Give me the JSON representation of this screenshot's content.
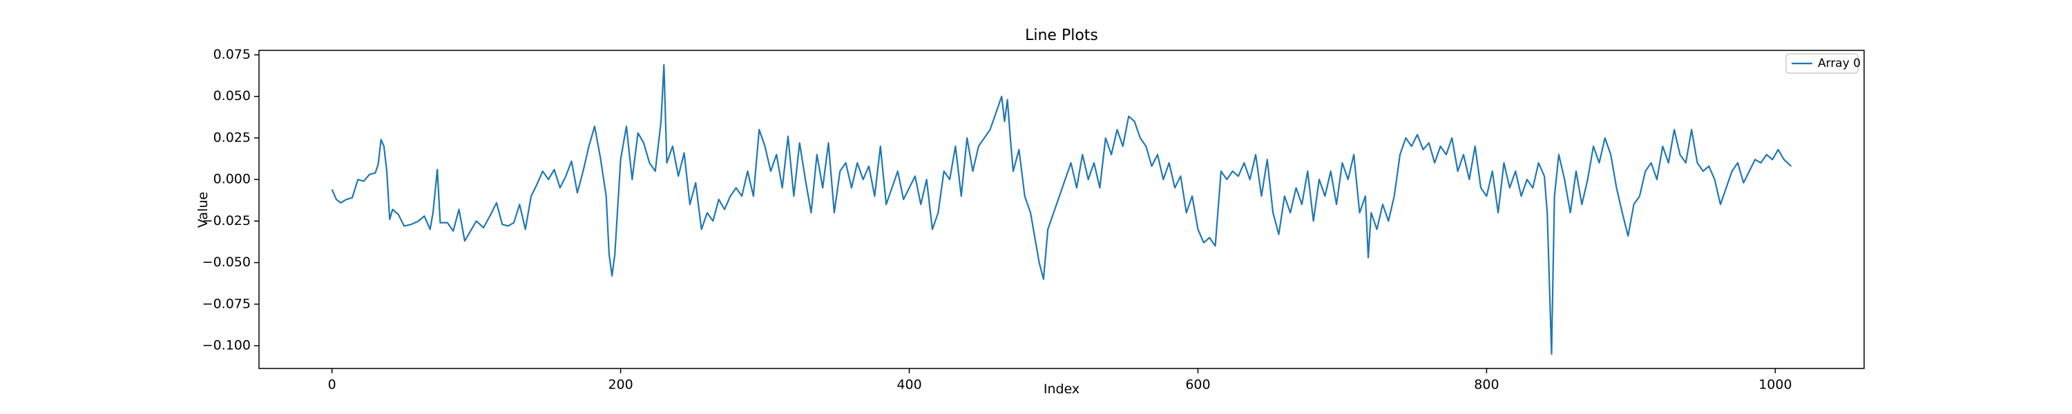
{
  "chart_data": {
    "type": "line",
    "title": "Line Plots",
    "x_label": "Index",
    "y_label": "Value",
    "x": [
      0,
      3,
      6,
      10,
      14,
      18,
      22,
      26,
      30,
      32,
      34,
      36,
      38,
      40,
      42,
      46,
      50,
      55,
      60,
      64,
      68,
      70,
      73,
      75,
      80,
      84,
      88,
      92,
      96,
      100,
      105,
      110,
      114,
      118,
      122,
      126,
      130,
      134,
      138,
      142,
      146,
      150,
      154,
      158,
      162,
      166,
      170,
      174,
      178,
      182,
      186,
      190,
      192,
      194,
      196,
      200,
      204,
      208,
      212,
      216,
      220,
      224,
      228,
      230,
      232,
      236,
      240,
      244,
      248,
      252,
      256,
      260,
      264,
      268,
      272,
      276,
      280,
      284,
      288,
      292,
      296,
      300,
      304,
      308,
      312,
      316,
      320,
      324,
      328,
      332,
      336,
      340,
      344,
      348,
      352,
      356,
      360,
      364,
      368,
      372,
      376,
      380,
      384,
      388,
      392,
      396,
      400,
      404,
      408,
      412,
      416,
      420,
      424,
      428,
      432,
      436,
      440,
      444,
      448,
      452,
      456,
      460,
      464,
      466,
      468,
      470,
      472,
      476,
      480,
      484,
      488,
      490,
      493,
      496,
      500,
      504,
      508,
      512,
      516,
      520,
      524,
      528,
      532,
      536,
      540,
      544,
      548,
      552,
      556,
      560,
      564,
      568,
      572,
      576,
      580,
      584,
      588,
      592,
      596,
      600,
      604,
      608,
      612,
      616,
      620,
      624,
      628,
      632,
      636,
      640,
      644,
      648,
      652,
      656,
      660,
      664,
      668,
      672,
      676,
      680,
      684,
      688,
      692,
      696,
      700,
      704,
      708,
      712,
      716,
      718,
      720,
      724,
      728,
      732,
      736,
      740,
      744,
      748,
      752,
      756,
      760,
      764,
      768,
      772,
      776,
      780,
      784,
      788,
      792,
      796,
      800,
      804,
      808,
      812,
      816,
      820,
      824,
      828,
      832,
      836,
      840,
      842,
      845,
      847,
      850,
      854,
      858,
      862,
      866,
      870,
      874,
      878,
      882,
      886,
      890,
      894,
      898,
      902,
      906,
      910,
      914,
      918,
      922,
      926,
      930,
      934,
      938,
      942,
      946,
      950,
      954,
      958,
      962,
      966,
      970,
      974,
      978,
      982,
      986,
      990,
      994,
      998,
      1002,
      1006,
      1011
    ],
    "series": [
      {
        "name": "Array 0",
        "color": "#1f77b4",
        "values": [
          -0.006,
          -0.012,
          -0.014,
          -0.012,
          -0.011,
          0.0,
          -0.001,
          0.003,
          0.004,
          0.009,
          0.024,
          0.02,
          0.005,
          -0.024,
          -0.018,
          -0.021,
          -0.028,
          -0.027,
          -0.025,
          -0.022,
          -0.03,
          -0.02,
          0.006,
          -0.026,
          -0.026,
          -0.031,
          -0.018,
          -0.037,
          -0.031,
          -0.025,
          -0.029,
          -0.021,
          -0.014,
          -0.027,
          -0.028,
          -0.026,
          -0.015,
          -0.03,
          -0.01,
          -0.003,
          0.005,
          0.0,
          0.006,
          -0.005,
          0.002,
          0.011,
          -0.008,
          0.005,
          0.02,
          0.032,
          0.013,
          -0.01,
          -0.045,
          -0.058,
          -0.045,
          0.012,
          0.032,
          0.0,
          0.028,
          0.022,
          0.01,
          0.005,
          0.035,
          0.069,
          0.01,
          0.02,
          0.002,
          0.016,
          -0.015,
          -0.002,
          -0.03,
          -0.02,
          -0.025,
          -0.012,
          -0.018,
          -0.01,
          -0.005,
          -0.01,
          0.005,
          -0.01,
          0.03,
          0.02,
          0.005,
          0.015,
          -0.005,
          0.026,
          -0.01,
          0.022,
          0.0,
          -0.02,
          0.015,
          -0.005,
          0.022,
          -0.02,
          0.005,
          0.01,
          -0.005,
          0.01,
          0.0,
          0.008,
          -0.01,
          0.02,
          -0.015,
          -0.005,
          0.005,
          -0.012,
          -0.005,
          0.002,
          -0.015,
          0.0,
          -0.03,
          -0.02,
          0.005,
          0.0,
          0.02,
          -0.01,
          0.025,
          0.005,
          0.02,
          0.025,
          0.03,
          0.04,
          0.05,
          0.035,
          0.048,
          0.025,
          0.005,
          0.018,
          -0.01,
          -0.02,
          -0.04,
          -0.05,
          -0.06,
          -0.03,
          -0.02,
          -0.01,
          0.0,
          0.01,
          -0.005,
          0.015,
          0.0,
          0.01,
          -0.005,
          0.025,
          0.015,
          0.03,
          0.02,
          0.038,
          0.035,
          0.025,
          0.02,
          0.008,
          0.015,
          0.0,
          0.01,
          -0.005,
          0.002,
          -0.02,
          -0.01,
          -0.03,
          -0.038,
          -0.035,
          -0.04,
          0.005,
          0.0,
          0.005,
          0.002,
          0.01,
          0.0,
          0.015,
          -0.01,
          0.012,
          -0.02,
          -0.033,
          -0.01,
          -0.02,
          -0.005,
          -0.015,
          0.005,
          -0.025,
          0.0,
          -0.01,
          0.005,
          -0.015,
          0.01,
          0.0,
          0.015,
          -0.02,
          -0.01,
          -0.047,
          -0.02,
          -0.03,
          -0.015,
          -0.025,
          -0.01,
          0.015,
          0.025,
          0.02,
          0.027,
          0.018,
          0.022,
          0.01,
          0.02,
          0.015,
          0.025,
          0.005,
          0.015,
          0.0,
          0.02,
          -0.005,
          -0.01,
          0.005,
          -0.02,
          0.01,
          -0.005,
          0.005,
          -0.01,
          0.0,
          -0.005,
          0.01,
          0.002,
          -0.02,
          -0.105,
          -0.01,
          0.015,
          0.0,
          -0.02,
          0.005,
          -0.015,
          0.0,
          0.02,
          0.01,
          0.025,
          0.015,
          -0.005,
          -0.02,
          -0.034,
          -0.015,
          -0.01,
          0.005,
          0.01,
          0.0,
          0.02,
          0.01,
          0.03,
          0.015,
          0.01,
          0.03,
          0.01,
          0.005,
          0.008,
          0.0,
          -0.015,
          -0.005,
          0.005,
          0.01,
          -0.002,
          0.005,
          0.012,
          0.01,
          0.015,
          0.012,
          0.018,
          0.012,
          0.008
        ]
      }
    ],
    "xlim": [
      -50.55,
      1061.55
    ],
    "ylim": [
      -0.1137,
      0.0777
    ],
    "xticks": [
      0,
      200,
      400,
      600,
      800,
      1000
    ],
    "yticks": [
      {
        "value": -0.1,
        "label": "−0.100"
      },
      {
        "value": -0.075,
        "label": "−0.075"
      },
      {
        "value": -0.05,
        "label": "−0.050"
      },
      {
        "value": -0.025,
        "label": "−0.025"
      },
      {
        "value": 0,
        "label": "0.000"
      },
      {
        "value": 0.025,
        "label": "0.025"
      },
      {
        "value": 0.05,
        "label": "0.050"
      },
      {
        "value": 0.075,
        "label": "0.075"
      }
    ],
    "grid": false,
    "legend": "upper right"
  }
}
